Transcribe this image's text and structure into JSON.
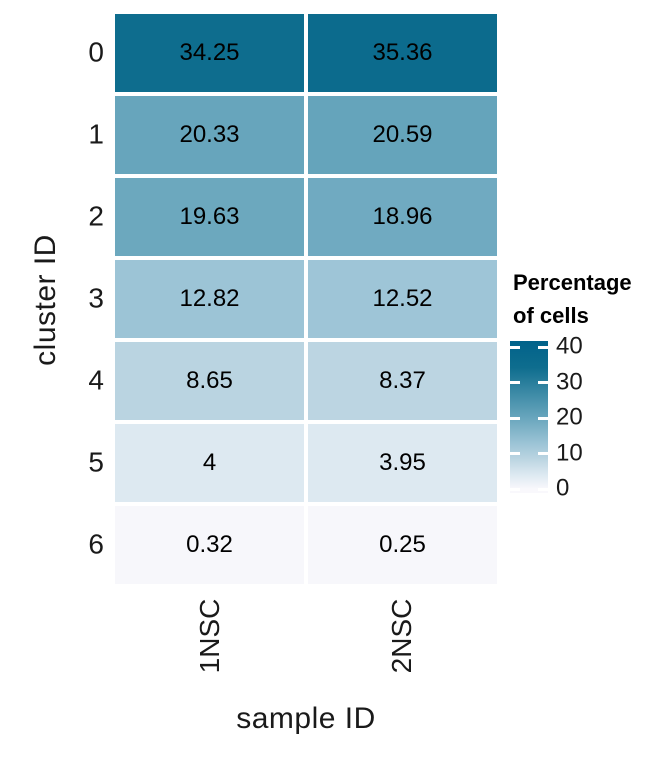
{
  "chart_data": {
    "type": "heatmap",
    "xlabel": "sample ID",
    "ylabel": "cluster ID",
    "categories_x": [
      "1NSC",
      "2NSC"
    ],
    "categories_y": [
      "0",
      "1",
      "2",
      "3",
      "4",
      "5",
      "6"
    ],
    "values": [
      [
        34.25,
        35.36
      ],
      [
        20.33,
        20.59
      ],
      [
        19.63,
        18.96
      ],
      [
        12.82,
        12.52
      ],
      [
        8.65,
        8.37
      ],
      [
        4,
        3.95
      ],
      [
        0.32,
        0.25
      ]
    ],
    "grid": false,
    "cell_gap_color": "#ffffff",
    "text_color": "#000000",
    "legend": {
      "position": "right",
      "title_lines": [
        "Percentage",
        "of cells"
      ],
      "ticks": [
        40,
        30,
        20,
        10,
        0
      ],
      "bar_value_top": 41.7,
      "bar_value_bottom": -1.1,
      "tick_dash_color": "#ffffff"
    },
    "color_scale": {
      "description": "white-to-teal sequential fill, piecewise-linear stops [value, hex]",
      "stops": [
        [
          0,
          "#f9f8fc"
        ],
        [
          4,
          "#dde9f1"
        ],
        [
          8.65,
          "#bad4e1"
        ],
        [
          12.82,
          "#9cc4d6"
        ],
        [
          20,
          "#69a6bd"
        ],
        [
          34.25,
          "#0e6d8e"
        ],
        [
          42.5,
          "#00618a"
        ]
      ]
    }
  }
}
